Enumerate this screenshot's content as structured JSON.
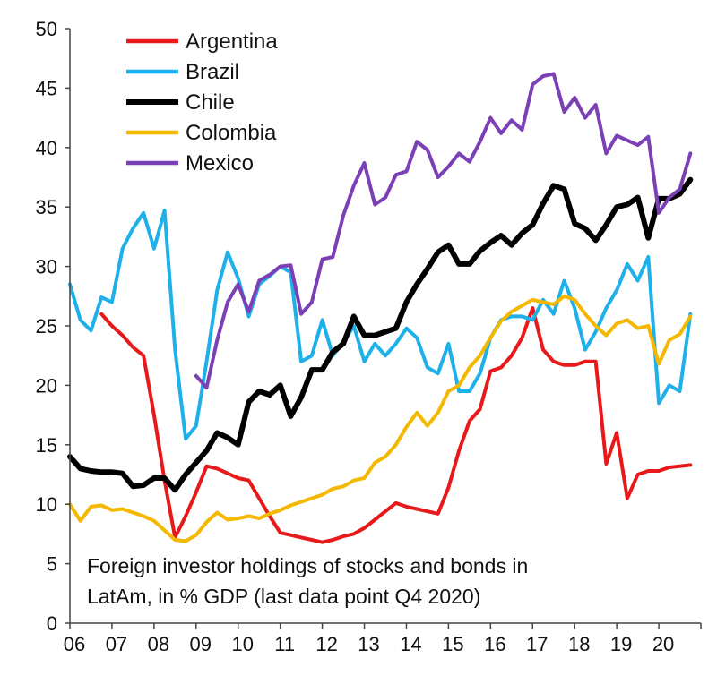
{
  "chart_data": {
    "type": "line",
    "title": "",
    "xlabel": "",
    "ylabel": "",
    "ylim": [
      0,
      50
    ],
    "xlim": [
      2006,
      2021
    ],
    "yticks": [
      0,
      5,
      10,
      15,
      20,
      25,
      30,
      35,
      40,
      45,
      50
    ],
    "xtick_labels": [
      "06",
      "07",
      "08",
      "09",
      "10",
      "11",
      "12",
      "13",
      "14",
      "15",
      "16",
      "17",
      "18",
      "19",
      "20"
    ],
    "grid": false,
    "legend_position": "top-left",
    "annotation_lines": [
      "Foreign investor holdings of stocks and bonds in",
      "LatAm, in % GDP (last data point Q4 2020)"
    ],
    "series": [
      {
        "name": "Argentina",
        "color": "#e8191a",
        "width": 4,
        "x": [
          2006.75,
          2007.0,
          2007.25,
          2007.5,
          2007.75,
          2008.0,
          2008.25,
          2008.5,
          2008.75,
          2009.0,
          2009.25,
          2009.5,
          2009.75,
          2010.0,
          2010.25,
          2010.5,
          2010.75,
          2011.0,
          2011.25,
          2011.5,
          2011.75,
          2012.0,
          2012.25,
          2012.5,
          2012.75,
          2013.0,
          2013.25,
          2013.5,
          2013.75,
          2014.0,
          2014.25,
          2014.5,
          2014.75,
          2015.0,
          2015.25,
          2015.5,
          2015.75,
          2016.0,
          2016.25,
          2016.5,
          2016.75,
          2017.0,
          2017.25,
          2017.5,
          2017.75,
          2018.0,
          2018.25,
          2018.5,
          2018.75,
          2019.0,
          2019.25,
          2019.5,
          2019.75,
          2020.0,
          2020.25,
          2020.5,
          2020.75
        ],
        "values": [
          26,
          25,
          24.2,
          23.2,
          22.5,
          17.5,
          12,
          7.2,
          9,
          11,
          13.2,
          13,
          12.6,
          12.2,
          12,
          10.5,
          9,
          7.6,
          7.4,
          7.2,
          7,
          6.8,
          7,
          7.3,
          7.5,
          8,
          8.7,
          9.4,
          10.1,
          9.8,
          9.6,
          9.4,
          9.2,
          11.4,
          14.5,
          17,
          18,
          21.2,
          21.5,
          22.5,
          24,
          26.5,
          23,
          22,
          21.7,
          21.7,
          22,
          22,
          13.4,
          16,
          10.5,
          12.5,
          12.8,
          12.8,
          13.1,
          13.2,
          13.3
        ]
      },
      {
        "name": "Brazil",
        "color": "#1fb0ea",
        "width": 4,
        "x": [
          2006.0,
          2006.25,
          2006.5,
          2006.75,
          2007.0,
          2007.25,
          2007.5,
          2007.75,
          2008.0,
          2008.25,
          2008.5,
          2008.75,
          2009.0,
          2009.25,
          2009.5,
          2009.75,
          2010.0,
          2010.25,
          2010.5,
          2010.75,
          2011.0,
          2011.25,
          2011.5,
          2011.75,
          2012.0,
          2012.25,
          2012.5,
          2012.75,
          2013.0,
          2013.25,
          2013.5,
          2013.75,
          2014.0,
          2014.25,
          2014.5,
          2014.75,
          2015.0,
          2015.25,
          2015.5,
          2015.75,
          2016.0,
          2016.25,
          2016.5,
          2016.75,
          2017.0,
          2017.25,
          2017.5,
          2017.75,
          2018.0,
          2018.25,
          2018.5,
          2018.75,
          2019.0,
          2019.25,
          2019.5,
          2019.75,
          2020.0,
          2020.25,
          2020.5,
          2020.75
        ],
        "values": [
          28.5,
          25.5,
          24.6,
          27.4,
          27,
          31.5,
          33.2,
          34.5,
          31.5,
          34.7,
          23,
          15.5,
          16.6,
          22,
          28,
          31.2,
          29,
          25.8,
          28.5,
          29.2,
          30,
          29.5,
          22,
          22.5,
          25.5,
          22.5,
          23.6,
          25,
          22,
          23.5,
          22.5,
          23.5,
          24.8,
          24,
          21.5,
          21,
          23.5,
          19.5,
          19.5,
          21,
          24,
          25.5,
          25.8,
          25.8,
          25.5,
          27.2,
          26,
          28.8,
          26.5,
          23,
          24.5,
          26.5,
          28,
          30.2,
          28.8,
          30.8,
          18.5,
          20,
          19.5,
          26
        ]
      },
      {
        "name": "Chile",
        "color": "#000000",
        "width": 6,
        "x": [
          2006.0,
          2006.25,
          2006.5,
          2006.75,
          2007.0,
          2007.25,
          2007.5,
          2007.75,
          2008.0,
          2008.25,
          2008.5,
          2008.75,
          2009.0,
          2009.25,
          2009.5,
          2009.75,
          2010.0,
          2010.25,
          2010.5,
          2010.75,
          2011.0,
          2011.25,
          2011.5,
          2011.75,
          2012.0,
          2012.25,
          2012.5,
          2012.75,
          2013.0,
          2013.25,
          2013.5,
          2013.75,
          2014.0,
          2014.25,
          2014.5,
          2014.75,
          2015.0,
          2015.25,
          2015.5,
          2015.75,
          2016.0,
          2016.25,
          2016.5,
          2016.75,
          2017.0,
          2017.25,
          2017.5,
          2017.75,
          2018.0,
          2018.25,
          2018.5,
          2018.75,
          2019.0,
          2019.25,
          2019.5,
          2019.75,
          2020.0,
          2020.25,
          2020.5,
          2020.75
        ],
        "values": [
          14,
          13,
          12.8,
          12.7,
          12.7,
          12.6,
          11.5,
          11.6,
          12.2,
          12.2,
          11.2,
          12.5,
          13.5,
          14.5,
          16,
          15.6,
          15,
          18.6,
          19.5,
          19.2,
          20,
          17.4,
          19,
          21.3,
          21.3,
          22.8,
          23.5,
          25.8,
          24.2,
          24.2,
          24.5,
          24.8,
          27,
          28.5,
          29.8,
          31.2,
          31.8,
          30.2,
          30.2,
          31.3,
          32,
          32.6,
          31.8,
          32.8,
          33.5,
          35.3,
          36.8,
          36.5,
          33.6,
          33.2,
          32.2,
          33.5,
          35,
          35.2,
          35.8,
          32.4,
          35.7,
          35.7,
          36.1,
          37.3
        ]
      },
      {
        "name": "Colombia",
        "color": "#f5b800",
        "width": 4,
        "x": [
          2006.0,
          2006.25,
          2006.5,
          2006.75,
          2007.0,
          2007.25,
          2007.5,
          2007.75,
          2008.0,
          2008.25,
          2008.5,
          2008.75,
          2009.0,
          2009.25,
          2009.5,
          2009.75,
          2010.0,
          2010.25,
          2010.5,
          2010.75,
          2011.0,
          2011.25,
          2011.5,
          2011.75,
          2012.0,
          2012.25,
          2012.5,
          2012.75,
          2013.0,
          2013.25,
          2013.5,
          2013.75,
          2014.0,
          2014.25,
          2014.5,
          2014.75,
          2015.0,
          2015.25,
          2015.5,
          2015.75,
          2016.0,
          2016.25,
          2016.5,
          2016.75,
          2017.0,
          2017.25,
          2017.5,
          2017.75,
          2018.0,
          2018.25,
          2018.5,
          2018.75,
          2019.0,
          2019.25,
          2019.5,
          2019.75,
          2020.0,
          2020.25,
          2020.5,
          2020.75
        ],
        "values": [
          10,
          8.6,
          9.8,
          9.9,
          9.5,
          9.6,
          9.3,
          9,
          8.6,
          7.8,
          7,
          6.9,
          7.4,
          8.5,
          9.3,
          8.7,
          8.8,
          9,
          8.8,
          9.2,
          9.5,
          9.9,
          10.2,
          10.5,
          10.8,
          11.3,
          11.5,
          12,
          12.2,
          13.5,
          14,
          15,
          16.5,
          17.7,
          16.6,
          17.7,
          19.5,
          20,
          21.5,
          22.5,
          24,
          25.4,
          26.2,
          26.7,
          27.2,
          27,
          26.8,
          27.5,
          27.2,
          26,
          25,
          24.2,
          25.2,
          25.5,
          24.8,
          25,
          21.8,
          23.8,
          24.3,
          25.8
        ]
      },
      {
        "name": "Mexico",
        "color": "#7b3fb6",
        "width": 4,
        "x": [
          2009.0,
          2009.25,
          2009.5,
          2009.75,
          2010.0,
          2010.25,
          2010.5,
          2010.75,
          2011.0,
          2011.25,
          2011.5,
          2011.75,
          2012.0,
          2012.25,
          2012.5,
          2012.75,
          2013.0,
          2013.25,
          2013.5,
          2013.75,
          2014.0,
          2014.25,
          2014.5,
          2014.75,
          2015.0,
          2015.25,
          2015.5,
          2015.75,
          2016.0,
          2016.25,
          2016.5,
          2016.75,
          2017.0,
          2017.25,
          2017.5,
          2017.75,
          2018.0,
          2018.25,
          2018.5,
          2018.75,
          2019.0,
          2019.25,
          2019.5,
          2019.75,
          2020.0,
          2020.25,
          2020.5,
          2020.75
        ],
        "values": [
          20.8,
          19.8,
          23.8,
          27,
          28.5,
          26.2,
          28.8,
          29.3,
          30,
          30.1,
          26,
          27,
          30.6,
          30.8,
          34.3,
          36.8,
          38.7,
          35.2,
          35.8,
          37.7,
          38,
          40.5,
          39.8,
          37.5,
          38.4,
          39.5,
          38.8,
          40.5,
          42.5,
          41.2,
          42.3,
          41.5,
          45.3,
          46,
          46.2,
          43,
          44.2,
          42.5,
          43.6,
          39.5,
          41,
          40.6,
          40.2,
          40.9,
          34.5,
          35.8,
          36.5,
          39.5
        ]
      }
    ]
  }
}
